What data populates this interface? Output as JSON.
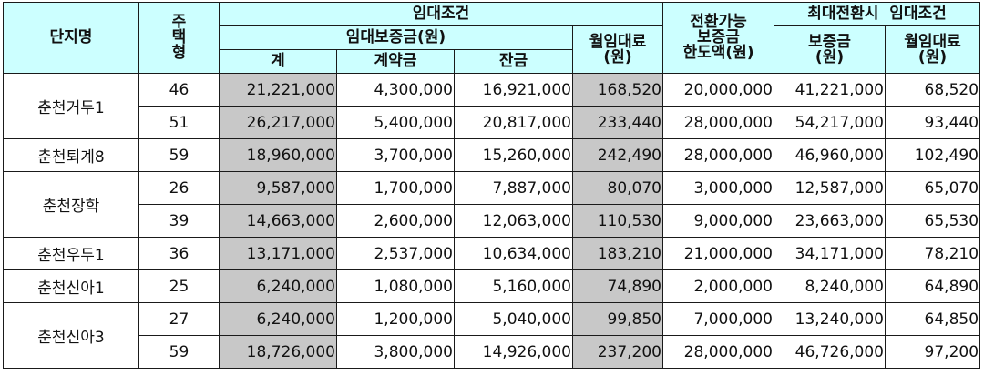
{
  "header": {
    "complex": "단지명",
    "type": [
      "주",
      "택",
      "형"
    ],
    "lease_terms": "임대조건",
    "deposit": "임대보증금(원)",
    "total": "계",
    "contract": "계약금",
    "balance": "잔금",
    "monthly_rent": [
      "월임대료",
      "(원)"
    ],
    "convertible_limit": [
      "전환가능",
      "보증금",
      "한도액(원)"
    ],
    "max_conversion": "최대전환시  임대조건",
    "max_deposit": [
      "보증금",
      "(원)"
    ],
    "max_rent": [
      "월임대료",
      "(원)"
    ]
  },
  "rows": [
    {
      "type": "46",
      "total": "21,221,000",
      "contract": "4,300,000",
      "balance": "16,921,000",
      "rent": "168,520",
      "limit": "20,000,000",
      "max_deposit": "41,221,000",
      "max_rent": "68,520"
    },
    {
      "type": "51",
      "total": "26,217,000",
      "contract": "5,400,000",
      "balance": "20,817,000",
      "rent": "233,440",
      "limit": "28,000,000",
      "max_deposit": "54,217,000",
      "max_rent": "93,440"
    },
    {
      "type": "59",
      "total": "18,960,000",
      "contract": "3,700,000",
      "balance": "15,260,000",
      "rent": "242,490",
      "limit": "28,000,000",
      "max_deposit": "46,960,000",
      "max_rent": "102,490"
    },
    {
      "type": "26",
      "total": "9,587,000",
      "contract": "1,700,000",
      "balance": "7,887,000",
      "rent": "80,070",
      "limit": "3,000,000",
      "max_deposit": "12,587,000",
      "max_rent": "65,070"
    },
    {
      "type": "39",
      "total": "14,663,000",
      "contract": "2,600,000",
      "balance": "12,063,000",
      "rent": "110,530",
      "limit": "9,000,000",
      "max_deposit": "23,663,000",
      "max_rent": "65,530"
    },
    {
      "type": "36",
      "total": "13,171,000",
      "contract": "2,537,000",
      "balance": "10,634,000",
      "rent": "183,210",
      "limit": "21,000,000",
      "max_deposit": "34,171,000",
      "max_rent": "78,210"
    },
    {
      "type": "25",
      "total": "6,240,000",
      "contract": "1,080,000",
      "balance": "5,160,000",
      "rent": "74,890",
      "limit": "2,000,000",
      "max_deposit": "8,240,000",
      "max_rent": "64,890"
    },
    {
      "type": "27",
      "total": "6,240,000",
      "contract": "1,200,000",
      "balance": "5,040,000",
      "rent": "99,850",
      "limit": "7,000,000",
      "max_deposit": "13,240,000",
      "max_rent": "64,850"
    },
    {
      "type": "59",
      "total": "18,726,000",
      "contract": "3,800,000",
      "balance": "14,926,000",
      "rent": "237,200",
      "limit": "28,000,000",
      "max_deposit": "46,726,000",
      "max_rent": "97,200"
    }
  ],
  "complexes": [
    "춘천거두1",
    "춘천퇴계8",
    "춘천장학",
    "춘천우두1",
    "춘천신아1",
    "춘천신아3"
  ]
}
